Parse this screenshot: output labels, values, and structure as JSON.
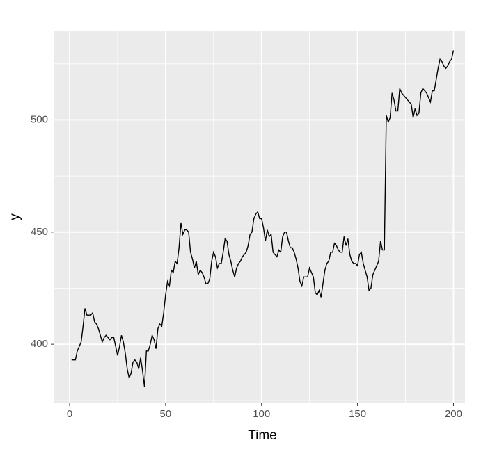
{
  "chart_data": {
    "type": "line",
    "x_label": "Time",
    "y_label": "y",
    "x": [
      1,
      2,
      3,
      4,
      5,
      6,
      7,
      8,
      9,
      10,
      11,
      12,
      13,
      14,
      15,
      16,
      17,
      18,
      19,
      20,
      21,
      22,
      23,
      24,
      25,
      26,
      27,
      28,
      29,
      30,
      31,
      32,
      33,
      34,
      35,
      36,
      37,
      38,
      39,
      40,
      41,
      42,
      43,
      44,
      45,
      46,
      47,
      48,
      49,
      50,
      51,
      52,
      53,
      54,
      55,
      56,
      57,
      58,
      59,
      60,
      61,
      62,
      63,
      64,
      65,
      66,
      67,
      68,
      69,
      70,
      71,
      72,
      73,
      74,
      75,
      76,
      77,
      78,
      79,
      80,
      81,
      82,
      83,
      84,
      85,
      86,
      87,
      88,
      89,
      90,
      91,
      92,
      93,
      94,
      95,
      96,
      97,
      98,
      99,
      100,
      101,
      102,
      103,
      104,
      105,
      106,
      107,
      108,
      109,
      110,
      111,
      112,
      113,
      114,
      115,
      116,
      117,
      118,
      119,
      120,
      121,
      122,
      123,
      124,
      125,
      126,
      127,
      128,
      129,
      130,
      131,
      132,
      133,
      134,
      135,
      136,
      137,
      138,
      139,
      140,
      141,
      142,
      143,
      144,
      145,
      146,
      147,
      148,
      149,
      150,
      151,
      152,
      153,
      154,
      155,
      156,
      157,
      158,
      159,
      160,
      161,
      162,
      163,
      164,
      165,
      166,
      167,
      168,
      169,
      170,
      171,
      172,
      173,
      174,
      175,
      176,
      177,
      178,
      179,
      180,
      181,
      182,
      183,
      184,
      185,
      186,
      187,
      188,
      189,
      190,
      191,
      192,
      193,
      194,
      195,
      196,
      197,
      198,
      199,
      200
    ],
    "series": [
      {
        "name": "y",
        "color": "#000000",
        "values": [
          393,
          393,
          393,
          397,
          399,
          401,
          408,
          416,
          413,
          413,
          413,
          414,
          410,
          409,
          407,
          404,
          401,
          403,
          404,
          403,
          402,
          403,
          403,
          399,
          395,
          399,
          404,
          401,
          396,
          389,
          385,
          387,
          392,
          393,
          392,
          389,
          394,
          388,
          381,
          397,
          397,
          400,
          404,
          402,
          398,
          407,
          409,
          408,
          414,
          422,
          428,
          426,
          433,
          432,
          437,
          436,
          443,
          454,
          449,
          451,
          451,
          450,
          441,
          438,
          434,
          437,
          431,
          433,
          432,
          430,
          427,
          427,
          429,
          437,
          441,
          439,
          434,
          436,
          436,
          441,
          447,
          446,
          440,
          437,
          433,
          430,
          434,
          436,
          437,
          439,
          440,
          441,
          444,
          449,
          450,
          456,
          458,
          459,
          456,
          456,
          452,
          446,
          451,
          448,
          449,
          441,
          440,
          439,
          442,
          441,
          448,
          450,
          450,
          446,
          443,
          443,
          441,
          438,
          434,
          428,
          426,
          430,
          430,
          430,
          434,
          432,
          430,
          423,
          422,
          424,
          421,
          427,
          433,
          436,
          437,
          441,
          441,
          445,
          444,
          442,
          441,
          441,
          448,
          444,
          447,
          440,
          437,
          436,
          436,
          435,
          440,
          441,
          436,
          433,
          430,
          424,
          425,
          431,
          433,
          435,
          437,
          446,
          442,
          442,
          502,
          499,
          501,
          512,
          509,
          504,
          504,
          514,
          512,
          511,
          510,
          509,
          508,
          507,
          501,
          505,
          502,
          503,
          512,
          514,
          513,
          512,
          510,
          508,
          513,
          513,
          518,
          523,
          527,
          526,
          524,
          523,
          524,
          526,
          527,
          531
        ]
      }
    ],
    "xlim": [
      -8.35,
      206
    ],
    "ylim": [
      373.7,
      539.5
    ],
    "xticks": [
      0,
      50,
      100,
      150,
      200
    ],
    "yticks": [
      400,
      450,
      500
    ],
    "x_minor_grid": [
      25,
      75,
      125,
      175
    ],
    "y_minor_grid": [
      375,
      425,
      475,
      525
    ],
    "grid": true,
    "legend": false
  }
}
